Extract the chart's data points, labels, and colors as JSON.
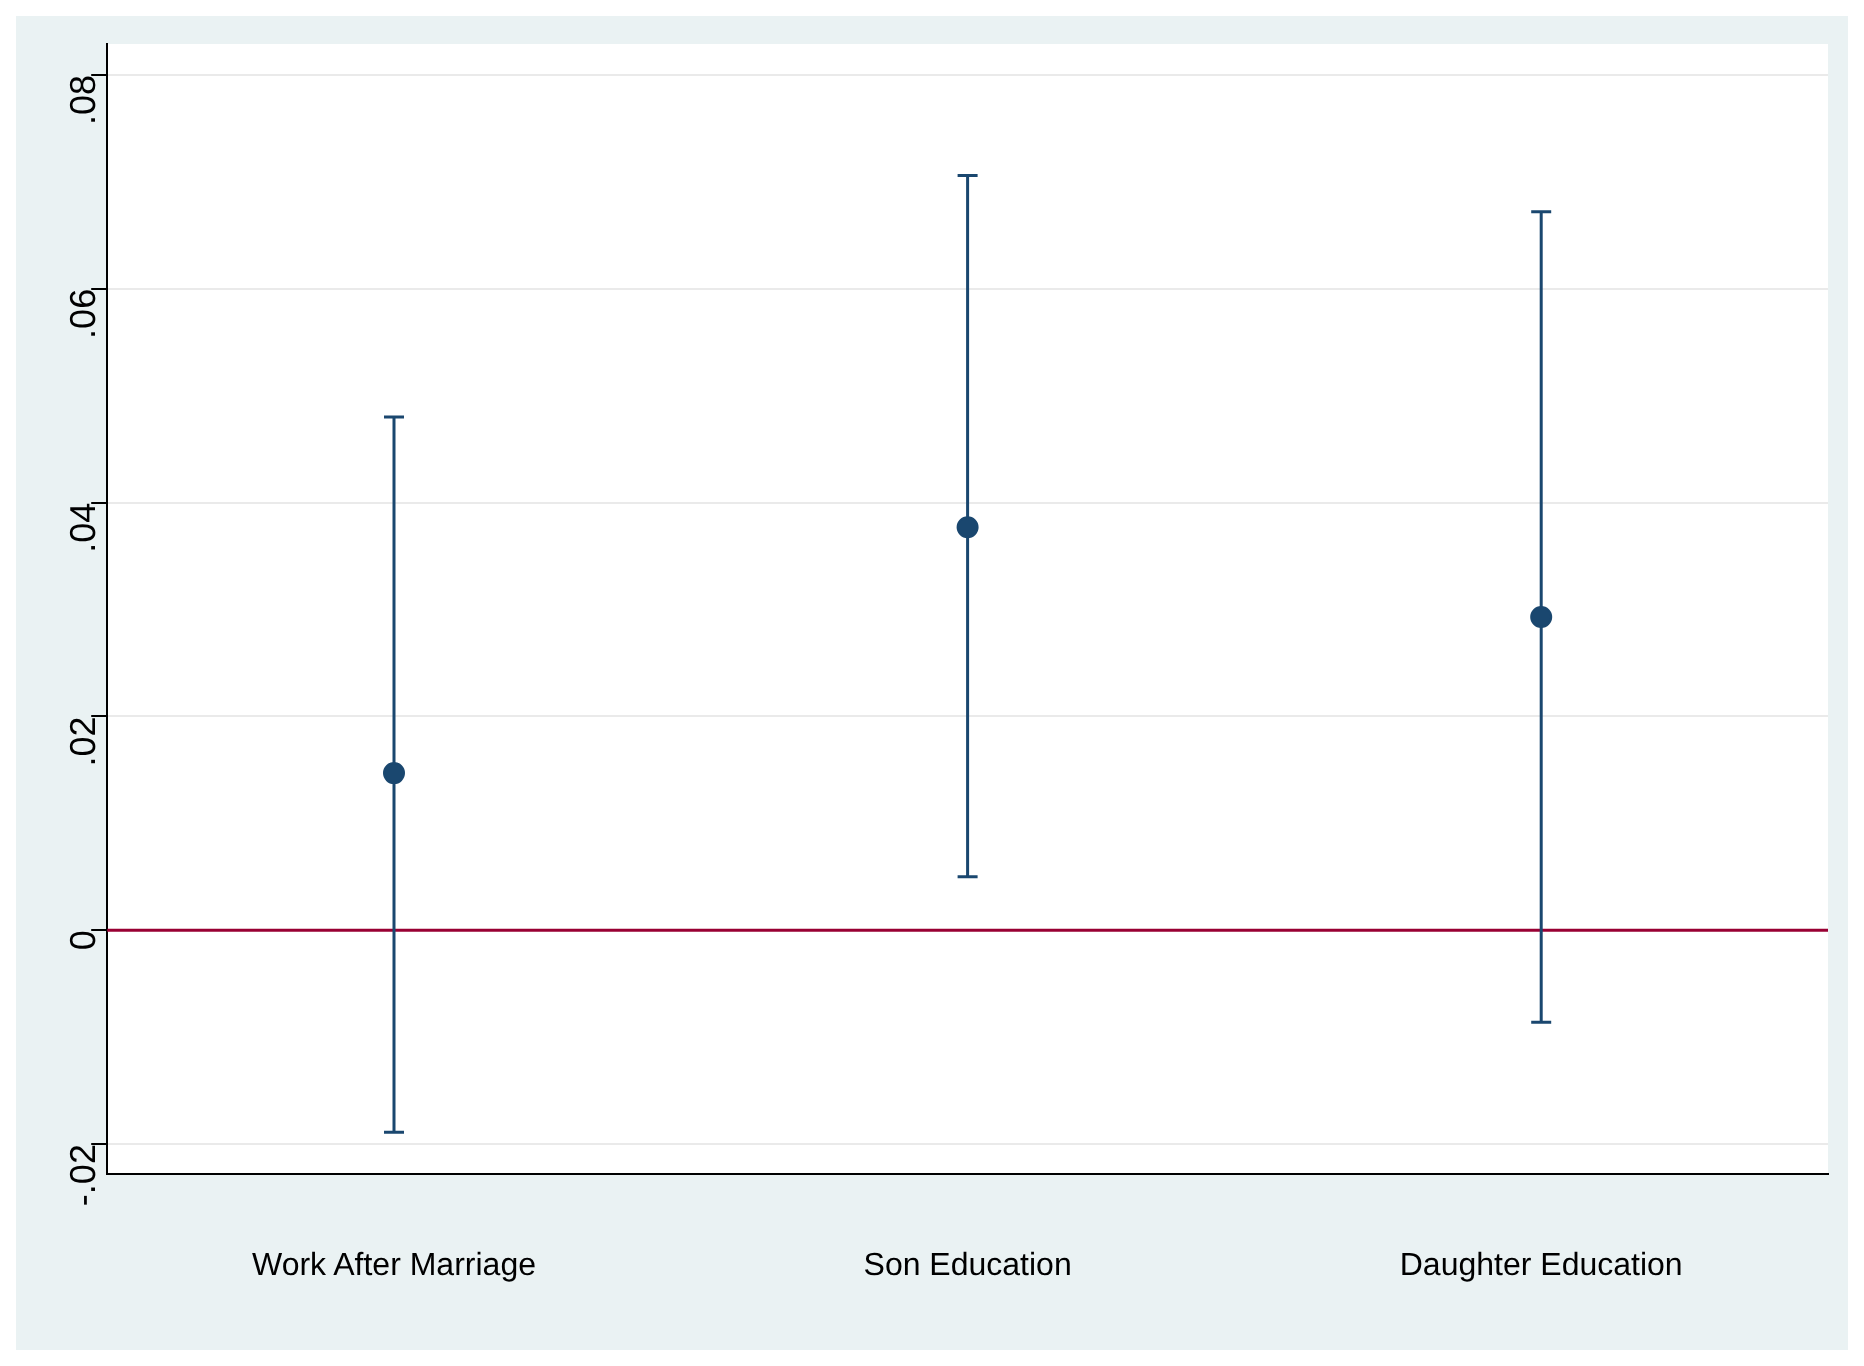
{
  "chart_data": {
    "type": "scatter",
    "categories": [
      "Work After Marriage",
      "Son Education",
      "Daughter Education"
    ],
    "series": [
      {
        "color": "#1a476f",
        "values": [
          0.0147,
          0.0377,
          0.0293
        ],
        "errors": [
          [
            -0.0189,
            0.048
          ],
          [
            0.005,
            0.0706
          ],
          [
            -0.0086,
            0.0672
          ]
        ]
      }
    ],
    "ylim": [
      -0.0228,
      0.0829
    ],
    "yticks": [
      {
        "value": -0.02,
        "label": "-.02"
      },
      {
        "value": 0,
        "label": "0"
      },
      {
        "value": 0.02,
        "label": ".02"
      },
      {
        "value": 0.04,
        "label": ".04"
      },
      {
        "value": 0.06,
        "label": ".06"
      },
      {
        "value": 0.08,
        "label": ".08"
      }
    ],
    "ref_lines": [
      {
        "axis": "y",
        "value": 0,
        "color": "#990033"
      }
    ],
    "grid": "y",
    "marker": "circle",
    "legend": false
  }
}
